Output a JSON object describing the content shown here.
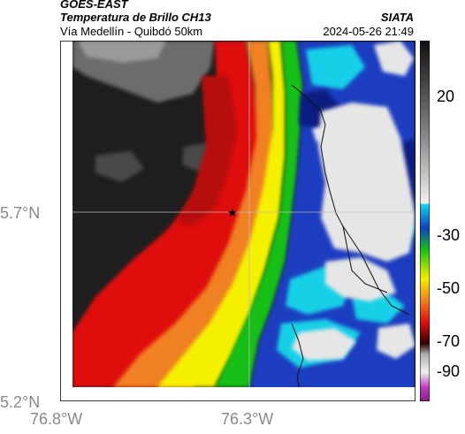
{
  "header": {
    "satellite": "GOES-EAST",
    "product": "Temperatura de Brillo CH13",
    "region": "Vía Medellín - Quibdó 50km",
    "organization": "SIATA",
    "datetime": "2024-05-26 21:49"
  },
  "axes": {
    "lat_ticks": [
      "5.7°N",
      "5.2°N"
    ],
    "lon_ticks": [
      "76.8°W",
      "76.3°W"
    ]
  },
  "colorbar": {
    "tick_labels": [
      "20",
      "-30",
      "-50",
      "-70",
      "-90"
    ]
  },
  "marker": {
    "symbol": "★",
    "name": "location-star"
  },
  "colors": {
    "warm_dark": "#1a1a1a",
    "gray": "#7a7a7a",
    "red": "#e01010",
    "orange": "#f08020",
    "yellow": "#f5f000",
    "green": "#18c018",
    "blue": "#1040c0",
    "cyan": "#18d0e8",
    "cloud_white": "#e8e8e8"
  }
}
